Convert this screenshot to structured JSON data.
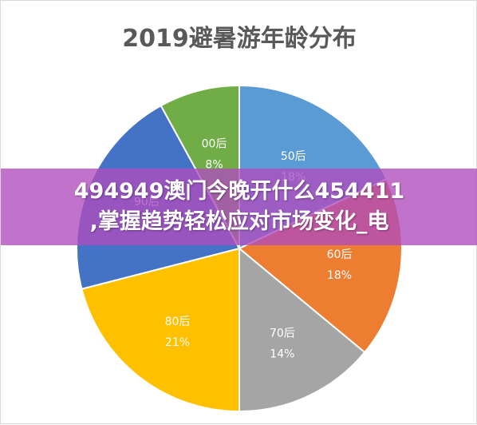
{
  "chart_data": {
    "type": "pie",
    "title": "2019避暑游年龄分布",
    "slices": [
      {
        "label": "50后",
        "value": 18,
        "percent_label": "18%",
        "color": "#5b9bd5"
      },
      {
        "label": "60后",
        "value": 18,
        "percent_label": "18%",
        "color": "#ed7d31"
      },
      {
        "label": "70后",
        "value": 14,
        "percent_label": "14%",
        "color": "#a5a5a5"
      },
      {
        "label": "80后",
        "value": 21,
        "percent_label": "21%",
        "color": "#ffc000"
      },
      {
        "label": "90后",
        "value": 21,
        "percent_label": "21%",
        "color": "#4472c4"
      },
      {
        "label": "00后",
        "value": 8,
        "percent_label": "8%",
        "color": "#70ad47"
      }
    ],
    "start": "12 o'clock",
    "direction": "clockwise",
    "legend": "none"
  },
  "banner": {
    "line1": "494949澳门今晚开什么454411",
    "line2": ",掌握趋势轻松应对市场变化_电"
  }
}
